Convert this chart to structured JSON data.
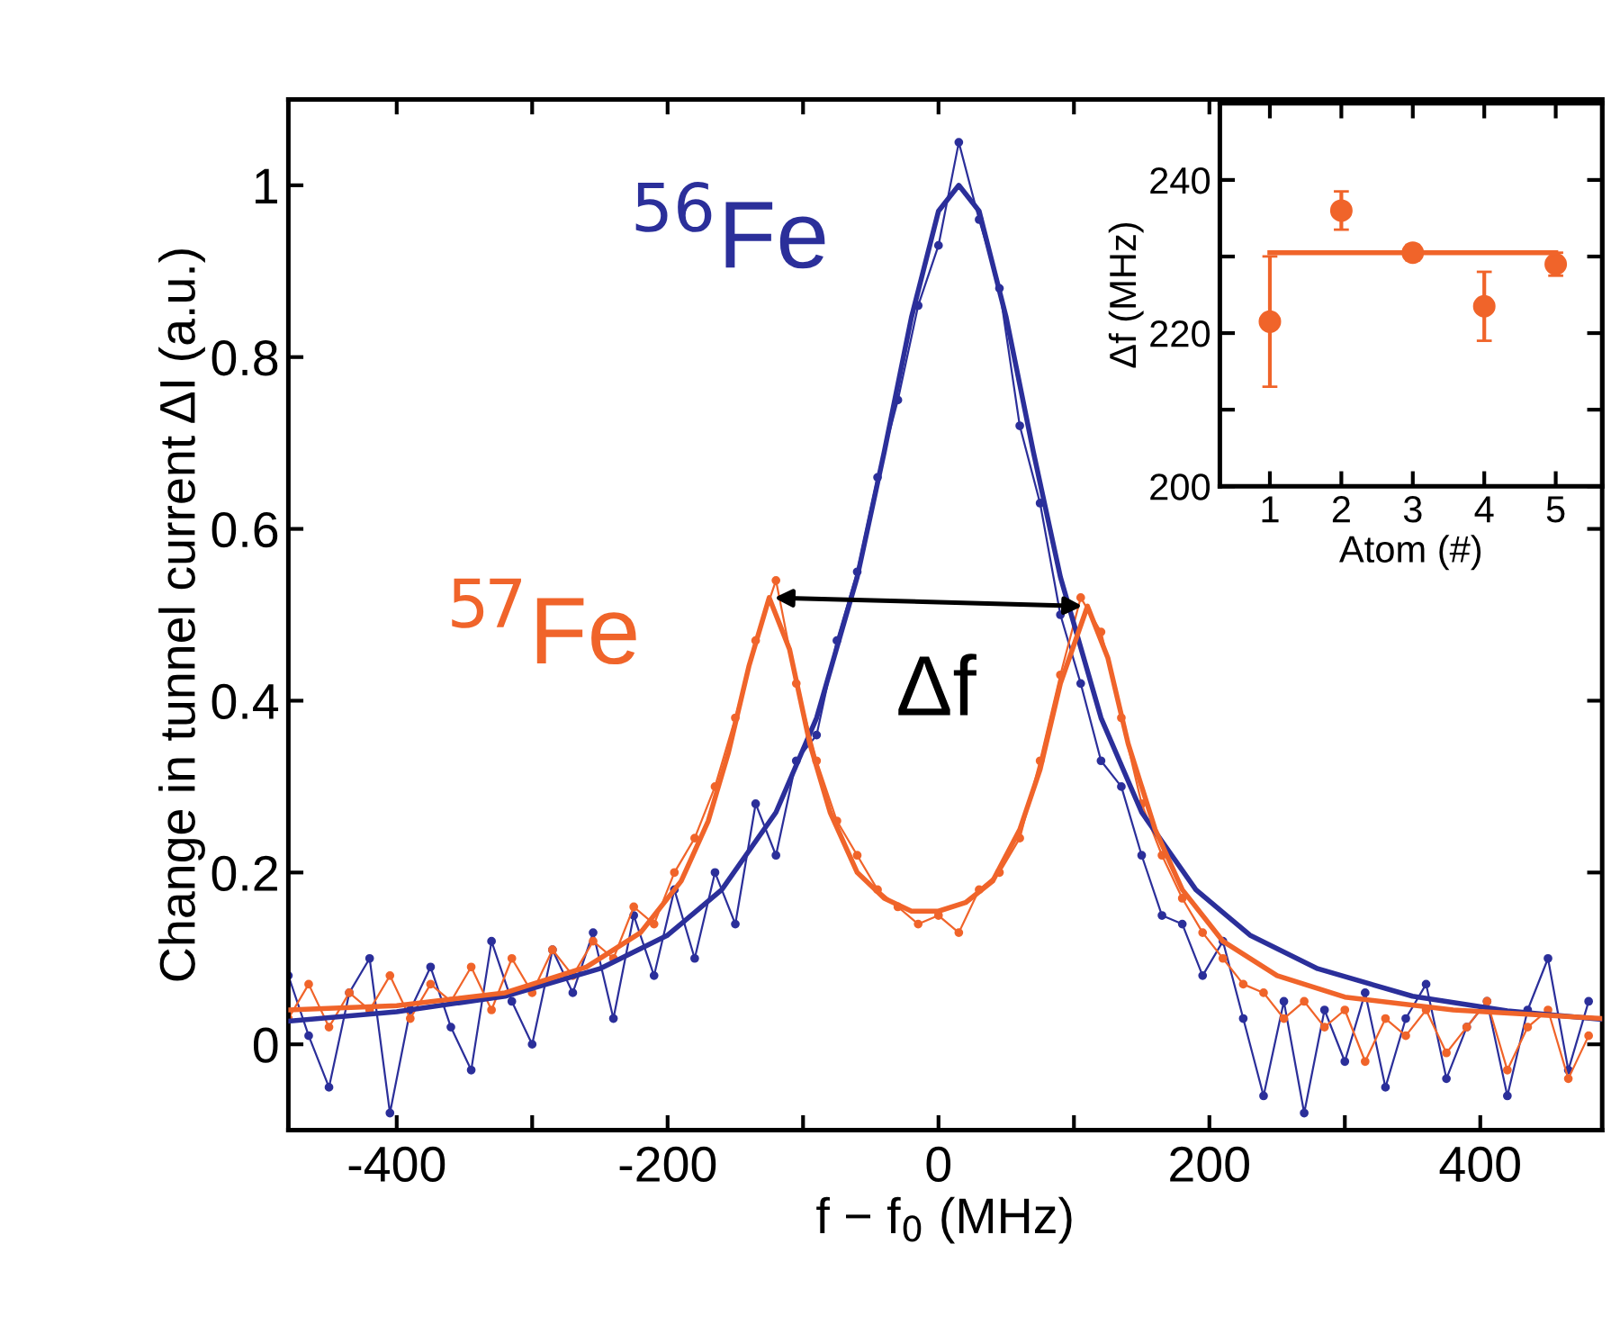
{
  "chart_data": [
    {
      "type": "line",
      "xlabel": "f − f$_{0}$ (MHz)",
      "ylabel": "Change in tunnel current ΔI (a.u.)",
      "xlim": [
        -480,
        490
      ],
      "ylim": [
        -0.1,
        1.1
      ],
      "xticks": [
        -400,
        {
          "value": -300,
          "label": null
        },
        -200,
        {
          "value": -100,
          "label": null
        },
        0,
        {
          "value": 100,
          "label": null
        },
        200,
        {
          "value": 300,
          "label": null
        },
        400
      ],
      "yticks": [
        0,
        0.2,
        0.4,
        0.6,
        0.8,
        1
      ],
      "grid": false,
      "legend": false,
      "annotations": [
        "$^{56}$Fe",
        "$^{57}$Fe",
        "Δf"
      ],
      "series": [
        {
          "color": "#2b2f9a",
          "marker": "circle",
          "x": [
            -480,
            -465,
            -450,
            -435,
            -420,
            -405,
            -390,
            -375,
            -360,
            -345,
            -330,
            -315,
            -300,
            -285,
            -270,
            -255,
            -240,
            -225,
            -210,
            -195,
            -180,
            -165,
            -150,
            -135,
            -120,
            -105,
            -90,
            -75,
            -60,
            -45,
            -30,
            -15,
            0,
            15,
            30,
            45,
            60,
            75,
            90,
            105,
            120,
            135,
            150,
            165,
            180,
            195,
            210,
            225,
            240,
            255,
            270,
            285,
            300,
            315,
            330,
            345,
            360,
            375,
            390,
            405,
            420,
            435,
            450,
            465,
            480
          ],
          "values": [
            0.08,
            0.01,
            -0.05,
            0.06,
            0.1,
            -0.08,
            0.04,
            0.09,
            0.02,
            -0.03,
            0.12,
            0.05,
            0.0,
            0.11,
            0.06,
            0.13,
            0.03,
            0.15,
            0.08,
            0.18,
            0.1,
            0.2,
            0.14,
            0.28,
            0.22,
            0.33,
            0.36,
            0.47,
            0.55,
            0.66,
            0.75,
            0.86,
            0.93,
            1.05,
            0.96,
            0.88,
            0.72,
            0.63,
            0.5,
            0.42,
            0.33,
            0.3,
            0.22,
            0.15,
            0.14,
            0.08,
            0.12,
            0.03,
            -0.06,
            0.05,
            -0.08,
            0.04,
            -0.02,
            0.06,
            -0.05,
            0.03,
            0.07,
            -0.04,
            0.02,
            0.05,
            -0.06,
            0.04,
            0.1,
            -0.03,
            0.05
          ]
        },
        {
          "color": "#f0642a",
          "marker": "circle",
          "x": [
            -480,
            -465,
            -450,
            -435,
            -420,
            -405,
            -390,
            -375,
            -360,
            -345,
            -330,
            -315,
            -300,
            -285,
            -270,
            -255,
            -240,
            -225,
            -210,
            -195,
            -180,
            -165,
            -150,
            -135,
            -120,
            -105,
            -90,
            -75,
            -60,
            -45,
            -30,
            -15,
            0,
            15,
            30,
            45,
            60,
            75,
            90,
            105,
            120,
            135,
            150,
            165,
            180,
            195,
            210,
            225,
            240,
            255,
            270,
            285,
            300,
            315,
            330,
            345,
            360,
            375,
            390,
            405,
            420,
            435,
            450,
            465,
            480
          ],
          "values": [
            0.03,
            0.07,
            0.02,
            0.06,
            0.04,
            0.08,
            0.03,
            0.07,
            0.05,
            0.09,
            0.04,
            0.1,
            0.06,
            0.11,
            0.08,
            0.12,
            0.1,
            0.16,
            0.14,
            0.2,
            0.24,
            0.3,
            0.38,
            0.47,
            0.54,
            0.42,
            0.33,
            0.26,
            0.22,
            0.18,
            0.16,
            0.14,
            0.15,
            0.13,
            0.18,
            0.2,
            0.24,
            0.33,
            0.43,
            0.52,
            0.48,
            0.38,
            0.28,
            0.22,
            0.17,
            0.13,
            0.1,
            0.07,
            0.06,
            0.03,
            0.05,
            0.02,
            0.04,
            -0.02,
            0.03,
            0.01,
            0.04,
            -0.01,
            0.02,
            0.05,
            -0.03,
            0.02,
            0.04,
            -0.04,
            0.01
          ]
        },
        {
          "color": "#2b2f9a",
          "marker": "none",
          "x": [
            -480,
            -400,
            -320,
            -250,
            -200,
            -160,
            -120,
            -90,
            -60,
            -40,
            -20,
            0,
            15,
            30,
            50,
            70,
            90,
            120,
            150,
            190,
            230,
            280,
            350,
            420,
            490
          ],
          "values": [
            0.027,
            0.038,
            0.056,
            0.088,
            0.127,
            0.18,
            0.27,
            0.38,
            0.544,
            0.69,
            0.846,
            0.97,
            1.0,
            0.97,
            0.846,
            0.69,
            0.544,
            0.38,
            0.27,
            0.18,
            0.127,
            0.088,
            0.056,
            0.039,
            0.029
          ]
        },
        {
          "color": "#f0642a",
          "marker": "none",
          "x": [
            -480,
            -400,
            -320,
            -260,
            -220,
            -190,
            -170,
            -155,
            -140,
            -125,
            -110,
            -95,
            -80,
            -60,
            -40,
            -20,
            0,
            20,
            40,
            60,
            75,
            90,
            110,
            125,
            140,
            160,
            180,
            210,
            250,
            300,
            380,
            490
          ],
          "values": [
            0.04,
            0.045,
            0.06,
            0.09,
            0.13,
            0.19,
            0.26,
            0.34,
            0.44,
            0.52,
            0.46,
            0.35,
            0.27,
            0.2,
            0.17,
            0.155,
            0.155,
            0.165,
            0.19,
            0.25,
            0.32,
            0.42,
            0.51,
            0.45,
            0.35,
            0.25,
            0.18,
            0.12,
            0.08,
            0.055,
            0.04,
            0.03
          ]
        }
      ]
    },
    {
      "type": "scatter",
      "xlabel": "Atom (#)",
      "ylabel": "Δf (MHz)",
      "xlim": [
        0.3,
        5.65
      ],
      "ylim": [
        200,
        250
      ],
      "xticks": [
        1,
        2,
        3,
        4,
        5
      ],
      "yticks": [
        200,
        {
          "value": 210,
          "label": null
        },
        220,
        {
          "value": 230,
          "label": null
        },
        240
      ],
      "grid": false,
      "legend": false,
      "series": [
        {
          "color": "#f0642a",
          "marker": "circle",
          "x": [
            1,
            2,
            3,
            4,
            5
          ],
          "values": [
            221.5,
            236,
            230.5,
            223.5,
            229
          ],
          "errors": [
            [
              213,
              230
            ],
            2.5,
            1,
            [
              219,
              228
            ],
            1.5
          ]
        },
        {
          "type": "line",
          "color": "#f0642a",
          "marker": "none",
          "x": [
            1,
            5
          ],
          "values": [
            230.5,
            230.5
          ]
        }
      ]
    }
  ]
}
